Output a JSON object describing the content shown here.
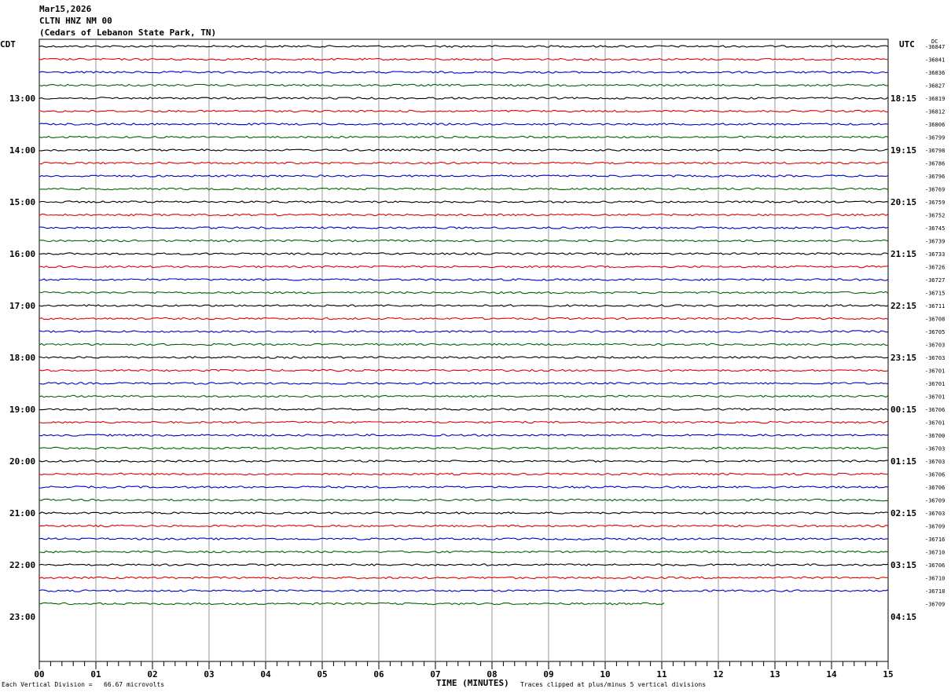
{
  "header": {
    "date": "Mar15,2026",
    "station": "CLTN HNZ NM 00",
    "location": "(Cedars of Lebanon State Park, TN)"
  },
  "left_tz": "CDT",
  "right_tz": "UTC",
  "dc_label": "DC",
  "footer": {
    "scale_note": "Each Vertical Division =   66.67 microvolts",
    "xlabel": "TIME (MINUTES)",
    "clip_note": "Traces clipped at plus/minus 5 vertical divisions"
  },
  "colors": {
    "trace_cycle": [
      "#000000",
      "#e00000",
      "#0000c8",
      "#006400"
    ],
    "grid": "#999999"
  },
  "chart_data": {
    "type": "line",
    "title": "",
    "xlabel": "TIME (MINUTES)",
    "x_range": [
      0,
      15
    ],
    "x_ticks": [
      "00",
      "01",
      "02",
      "03",
      "04",
      "05",
      "06",
      "07",
      "08",
      "09",
      "10",
      "11",
      "12",
      "13",
      "14",
      "15"
    ],
    "hour_labels_left": [
      "13:00",
      "14:00",
      "15:00",
      "16:00",
      "17:00",
      "18:00",
      "19:00",
      "20:00",
      "21:00",
      "22:00",
      "23:00"
    ],
    "hour_labels_right": [
      "18:15",
      "19:15",
      "20:15",
      "21:15",
      "22:15",
      "23:15",
      "00:15",
      "01:15",
      "02:15",
      "03:15",
      "04:15"
    ],
    "dc_offsets": [
      "-36847",
      "-36841",
      "-36836",
      "-36827",
      "-36819",
      "-36812",
      "-36806",
      "-36799",
      "-36798",
      "-36786",
      "-36796",
      "-36769",
      "-36759",
      "-36752",
      "-36745",
      "-36739",
      "-36733",
      "-36726",
      "-36727",
      "-36715",
      "-36711",
      "-36708",
      "-36705",
      "-36703",
      "-36703",
      "-36701",
      "-36701",
      "-36701",
      "-36706",
      "-36701",
      "-36700",
      "-36703",
      "-36703",
      "-36706",
      "-36706",
      "-36709",
      "-36703",
      "-36709",
      "-36716",
      "-36710",
      "-36706",
      "-36710",
      "-36718",
      "-36709"
    ],
    "last_trace_end_minute": 11.05,
    "trace_count": 44,
    "grid": true
  }
}
